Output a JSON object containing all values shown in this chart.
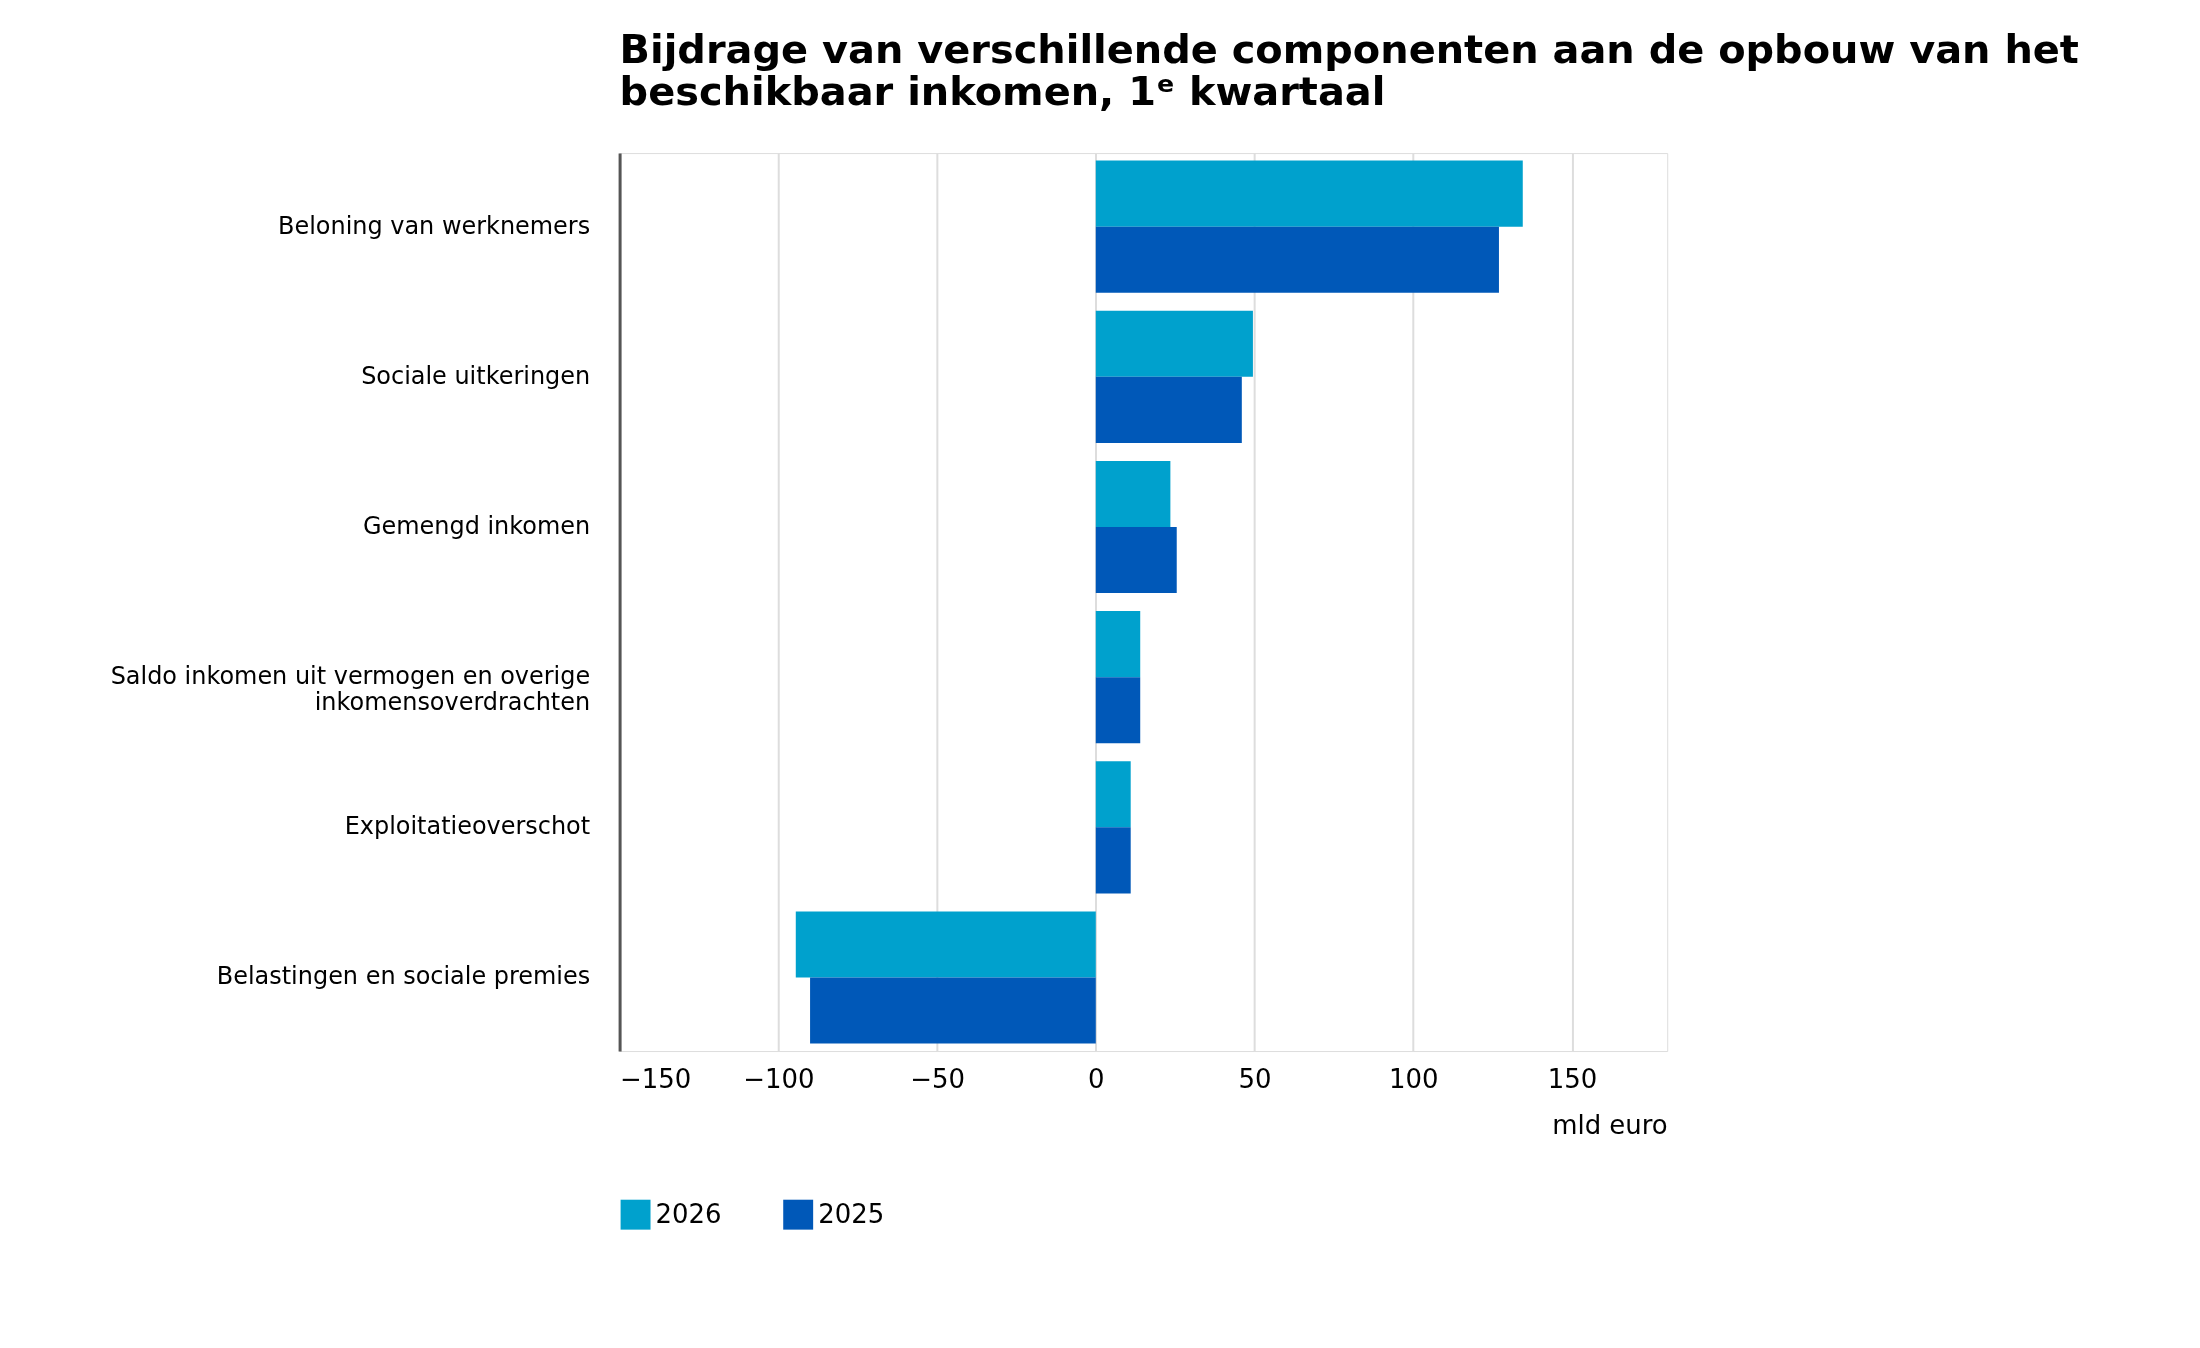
{
  "chart_data": {
    "type": "bar",
    "orientation": "horizontal",
    "title": "Bijdrage van verschillende componenten aan de opbouw van het beschikbaar inkomen, 1ᵉ kwartaal",
    "xlabel": "mld euro",
    "categories": [
      "Beloning van werknemers",
      "Sociale uitkeringen",
      "Gemengd inkomen",
      "Saldo inkomen uit vermogen en overige inkomensoverdrachten",
      "Exploitatieoverschot",
      "Belastingen en sociale premies"
    ],
    "series": [
      {
        "name": "2026",
        "color": "#00a1cd",
        "values": [
          134.5,
          49.5,
          23.5,
          14,
          11,
          -94.5
        ]
      },
      {
        "name": "2025",
        "color": "#0058b8",
        "values": [
          127,
          46,
          25.5,
          14,
          11,
          -90
        ]
      }
    ],
    "xlim": [
      -150,
      180
    ],
    "xticks": [
      -150,
      -100,
      -50,
      0,
      50,
      100,
      150
    ],
    "grid": "x",
    "legend": "bottom left"
  }
}
